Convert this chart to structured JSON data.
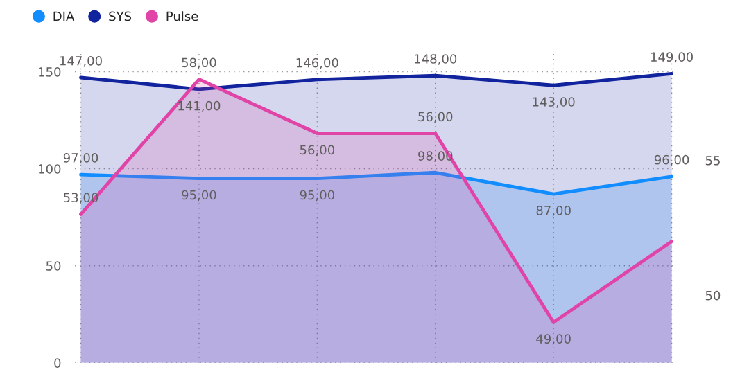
{
  "chart_data": {
    "type": "area",
    "categories": [
      null,
      null,
      null,
      null,
      null,
      null
    ],
    "ylim": [
      0,
      160
    ],
    "yticks": [
      0,
      50,
      100,
      150
    ],
    "y2lim": [
      47.5,
      59
    ],
    "y2ticks": [
      50,
      55
    ],
    "grid": true,
    "legend": "top left",
    "series": [
      {
        "name": "DIA",
        "color": "#118dff",
        "values": [
          97,
          95,
          95,
          98,
          87,
          96
        ],
        "value_labels": [
          "97,00",
          "95,00",
          "95,00",
          "98,00",
          "87,00",
          "96,00"
        ]
      },
      {
        "name": "SYS",
        "color": "#12239e",
        "values": [
          147,
          141,
          146,
          148,
          143,
          149
        ],
        "value_labels": [
          "147,00",
          "141,00",
          "146,00",
          "148,00",
          "143,00",
          "149,00"
        ]
      },
      {
        "name": "Pulse",
        "color": "#e044a7",
        "axis": "y2",
        "values": [
          53,
          58,
          56,
          56,
          49,
          52
        ],
        "value_labels": [
          "53,00",
          "58,00",
          "56,00",
          "56,00",
          "49,00",
          null
        ]
      }
    ]
  }
}
